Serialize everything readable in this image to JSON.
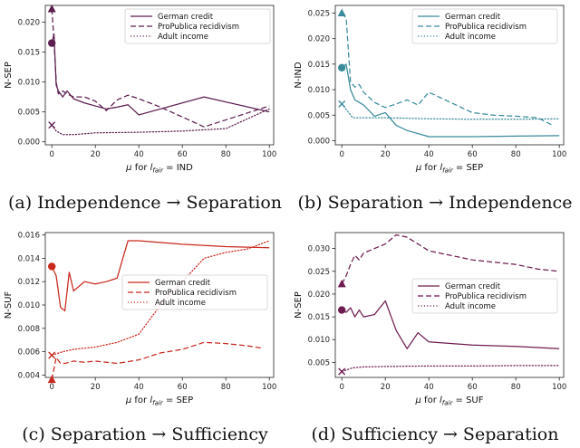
{
  "colors": {
    "a": "#5b1e4e",
    "b": "#3a8b9a",
    "c": "#c8281d",
    "d": "#6e1c4f"
  },
  "chart_data": [
    {
      "id": "a",
      "type": "line",
      "caption": "(a) Independence → Separation",
      "xlabel": "μ for l_fair = IND",
      "xlabel_prefix": "μ for ",
      "xlabel_l": "l",
      "xlabel_sub": "fair",
      "xlabel_suffix": " = IND",
      "ylabel": "N-SEP",
      "xlim": [
        -3,
        102
      ],
      "ylim": [
        -0.0005,
        0.0228
      ],
      "xticks": [
        0,
        20,
        40,
        60,
        80,
        100
      ],
      "xtick_labels": [
        "0",
        "20",
        "40",
        "60",
        "80",
        "100"
      ],
      "yticks": [
        0,
        0.005,
        0.01,
        0.015,
        0.02
      ],
      "ytick_labels": [
        "0.000",
        "0.005",
        "0.010",
        "0.015",
        "0.020"
      ],
      "legend": [
        "German credit",
        "ProPublica recidivism",
        "Adult income"
      ],
      "series": [
        {
          "name": "German credit",
          "style": "solid",
          "marker": "o",
          "x": [
            0,
            1,
            2,
            3,
            5,
            7,
            10,
            15,
            20,
            25,
            30,
            35,
            40,
            70,
            100
          ],
          "y": [
            0.0165,
            0.018,
            0.0095,
            0.0085,
            0.0075,
            0.0085,
            0.0072,
            0.0065,
            0.006,
            0.0055,
            0.0058,
            0.0062,
            0.0045,
            0.0075,
            0.005
          ]
        },
        {
          "name": "ProPublica recidivism",
          "style": "dash",
          "marker": "^",
          "x": [
            0,
            1,
            2,
            3,
            5,
            7,
            10,
            15,
            20,
            25,
            30,
            35,
            40,
            50,
            70,
            100
          ],
          "y": [
            0.0222,
            0.017,
            0.01,
            0.008,
            0.0085,
            0.008,
            0.0075,
            0.0075,
            0.0068,
            0.0052,
            0.007,
            0.0078,
            0.0072,
            0.0058,
            0.0025,
            0.006
          ]
        },
        {
          "name": "Adult income",
          "style": "dot",
          "marker": "x",
          "x": [
            0,
            2,
            5,
            10,
            20,
            40,
            60,
            80,
            100
          ],
          "y": [
            0.0028,
            0.0018,
            0.0012,
            0.0012,
            0.0015,
            0.0016,
            0.0018,
            0.0022,
            0.0055
          ]
        }
      ]
    },
    {
      "id": "b",
      "type": "line",
      "caption": "(b) Separation → Independence",
      "xlabel": "μ for l_fair = SEP",
      "xlabel_prefix": "μ for ",
      "xlabel_l": "l",
      "xlabel_sub": "fair",
      "xlabel_suffix": " = SEP",
      "ylabel": "N-IND",
      "xlim": [
        -3,
        102
      ],
      "ylim": [
        -0.0008,
        0.0265
      ],
      "xticks": [
        0,
        20,
        40,
        60,
        80,
        100
      ],
      "xtick_labels": [
        "0",
        "20",
        "40",
        "60",
        "80",
        "100"
      ],
      "yticks": [
        0,
        0.005,
        0.01,
        0.015,
        0.02,
        0.025
      ],
      "ytick_labels": [
        "0.000",
        "0.005",
        "0.010",
        "0.015",
        "0.020",
        "0.025"
      ],
      "legend": [
        "German credit",
        "ProPublica recidivism",
        "Adult income"
      ],
      "series": [
        {
          "name": "German credit",
          "style": "solid",
          "marker": "o",
          "x": [
            0,
            2,
            4,
            6,
            8,
            10,
            15,
            20,
            25,
            30,
            40,
            60,
            80,
            100
          ],
          "y": [
            0.0143,
            0.015,
            0.01,
            0.008,
            0.0075,
            0.007,
            0.0048,
            0.0055,
            0.003,
            0.002,
            0.0008,
            0.0008,
            0.0009,
            0.001
          ]
        },
        {
          "name": "ProPublica recidivism",
          "style": "dash",
          "marker": "^",
          "x": [
            0,
            2,
            4,
            6,
            8,
            10,
            15,
            20,
            25,
            30,
            35,
            40,
            50,
            60,
            70,
            80,
            90,
            97
          ],
          "y": [
            0.025,
            0.024,
            0.0115,
            0.0105,
            0.011,
            0.0095,
            0.0075,
            0.0065,
            0.0072,
            0.008,
            0.007,
            0.0095,
            0.0075,
            0.0055,
            0.005,
            0.0048,
            0.0045,
            0.003
          ]
        },
        {
          "name": "Adult income",
          "style": "dot",
          "marker": "x",
          "x": [
            0,
            5,
            10,
            20,
            40,
            60,
            80,
            100
          ],
          "y": [
            0.0072,
            0.0045,
            0.0045,
            0.0045,
            0.0043,
            0.0042,
            0.0042,
            0.0043
          ]
        }
      ]
    },
    {
      "id": "c",
      "type": "line",
      "caption": "(c) Separation → Sufficiency",
      "xlabel": "μ for l_fair = SEP",
      "xlabel_prefix": "μ for ",
      "xlabel_l": "l",
      "xlabel_sub": "fair",
      "xlabel_suffix": " = SEP",
      "ylabel": "N-SUF",
      "xlim": [
        -3,
        102
      ],
      "ylim": [
        0.0038,
        0.0162
      ],
      "xticks": [
        0,
        20,
        40,
        60,
        80,
        100
      ],
      "xtick_labels": [
        "0",
        "20",
        "40",
        "60",
        "80",
        "100"
      ],
      "yticks": [
        0.004,
        0.006,
        0.008,
        0.01,
        0.012,
        0.014,
        0.016
      ],
      "ytick_labels": [
        "0.004",
        "0.006",
        "0.008",
        "0.010",
        "0.012",
        "0.014",
        "0.016"
      ],
      "legend": [
        "German credit",
        "ProPublica recidivism",
        "Adult income"
      ],
      "series": [
        {
          "name": "German credit",
          "style": "solid",
          "marker": "o",
          "x": [
            0,
            2,
            4,
            6,
            8,
            10,
            15,
            20,
            25,
            30,
            35,
            40,
            60,
            80,
            100
          ],
          "y": [
            0.0133,
            0.0125,
            0.0098,
            0.0095,
            0.0128,
            0.0112,
            0.012,
            0.0118,
            0.012,
            0.0123,
            0.0155,
            0.0155,
            0.0152,
            0.015,
            0.0149
          ]
        },
        {
          "name": "ProPublica recidivism",
          "style": "dash",
          "marker": "^",
          "x": [
            0,
            2,
            4,
            6,
            10,
            15,
            20,
            25,
            30,
            40,
            50,
            60,
            70,
            80,
            90,
            97
          ],
          "y": [
            0.0036,
            0.0055,
            0.005,
            0.005,
            0.0052,
            0.0051,
            0.0052,
            0.0051,
            0.005,
            0.0053,
            0.0059,
            0.0062,
            0.0068,
            0.0067,
            0.0065,
            0.0063
          ]
        },
        {
          "name": "Adult income",
          "style": "dot",
          "marker": "x",
          "x": [
            0,
            5,
            10,
            20,
            30,
            40,
            50,
            60,
            70,
            80,
            90,
            100
          ],
          "y": [
            0.0057,
            0.006,
            0.0062,
            0.0064,
            0.0068,
            0.0075,
            0.01,
            0.012,
            0.014,
            0.0145,
            0.0148,
            0.0155
          ]
        }
      ]
    },
    {
      "id": "d",
      "type": "line",
      "caption": "(d) Sufficiency → Separation",
      "xlabel": "μ for l_fair = SUF",
      "xlabel_prefix": "μ for ",
      "xlabel_l": "l",
      "xlabel_sub": "fair",
      "xlabel_suffix": " = SUF",
      "ylabel": "N-SEP",
      "xlim": [
        -3,
        102
      ],
      "ylim": [
        0.0017,
        0.0335
      ],
      "xticks": [
        0,
        20,
        40,
        60,
        80,
        100
      ],
      "xtick_labels": [
        "0",
        "20",
        "40",
        "60",
        "80",
        "100"
      ],
      "yticks": [
        0.005,
        0.01,
        0.015,
        0.02,
        0.025,
        0.03
      ],
      "ytick_labels": [
        "0.005",
        "0.010",
        "0.015",
        "0.020",
        "0.025",
        "0.030"
      ],
      "legend": [
        "German credit",
        "ProPublica recidivism",
        "Adult income"
      ],
      "series": [
        {
          "name": "German credit",
          "style": "solid",
          "marker": "o",
          "x": [
            0,
            2,
            4,
            6,
            8,
            10,
            15,
            20,
            25,
            30,
            35,
            40,
            60,
            80,
            100
          ],
          "y": [
            0.0165,
            0.016,
            0.017,
            0.015,
            0.0165,
            0.015,
            0.0155,
            0.0185,
            0.012,
            0.008,
            0.0115,
            0.0095,
            0.0088,
            0.0085,
            0.008
          ]
        },
        {
          "name": "ProPublica recidivism",
          "style": "dash",
          "marker": "^",
          "x": [
            0,
            2,
            4,
            6,
            8,
            10,
            15,
            20,
            25,
            30,
            40,
            50,
            60,
            70,
            80,
            90,
            100
          ],
          "y": [
            0.0222,
            0.024,
            0.0265,
            0.0285,
            0.0275,
            0.029,
            0.03,
            0.031,
            0.033,
            0.0325,
            0.0295,
            0.0285,
            0.0275,
            0.027,
            0.0265,
            0.0255,
            0.025
          ]
        },
        {
          "name": "Adult income",
          "style": "dot",
          "marker": "x",
          "x": [
            0,
            5,
            10,
            20,
            40,
            60,
            80,
            100
          ],
          "y": [
            0.003,
            0.0038,
            0.004,
            0.0041,
            0.0042,
            0.0042,
            0.0043,
            0.0043
          ]
        }
      ]
    }
  ]
}
